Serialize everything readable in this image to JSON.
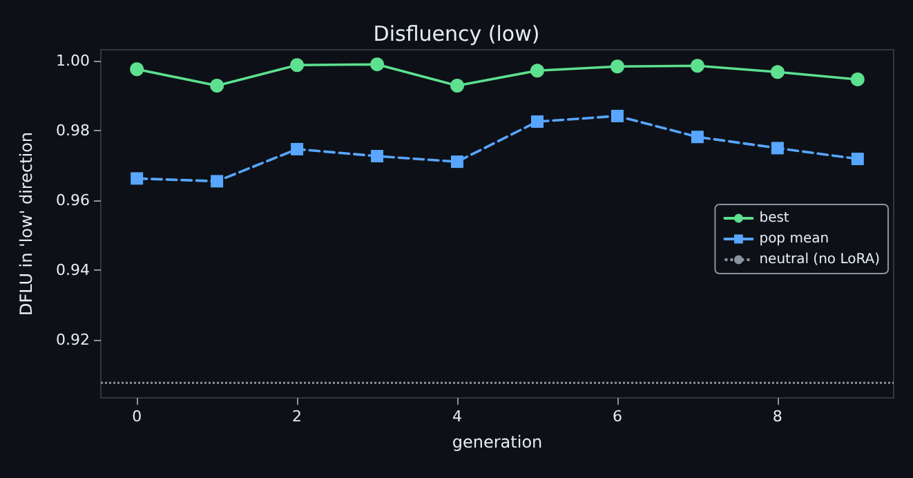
{
  "chart_data": {
    "type": "line",
    "title": "Disfluency (low)",
    "xlabel": "generation",
    "ylabel": "DFLU in 'low' direction",
    "x": [
      0,
      1,
      2,
      3,
      4,
      5,
      6,
      7,
      8,
      9
    ],
    "series": [
      {
        "name": "best",
        "color": "#5de08f",
        "marker": "circle",
        "line_style": "solid",
        "values": [
          0.9976,
          0.9929,
          0.9988,
          0.999,
          0.9929,
          0.9972,
          0.9984,
          0.9986,
          0.9968,
          0.9947
        ]
      },
      {
        "name": "pop mean",
        "color": "#58a6ff",
        "marker": "square",
        "line_style": "dashed",
        "values": [
          0.9663,
          0.9655,
          0.9747,
          0.9727,
          0.9711,
          0.9826,
          0.9842,
          0.9782,
          0.975,
          0.9719
        ]
      }
    ],
    "ref_lines": [
      {
        "axis": "y",
        "value": 0.9077,
        "label": "neutral (no LoRA)",
        "color": "#8b949e",
        "line_style": "dotted"
      }
    ],
    "xlim": [
      -0.45,
      9.45
    ],
    "xticks": [
      0,
      2,
      4,
      6,
      8
    ],
    "ylim": [
      0.9034,
      1.0032
    ],
    "yticks": [
      0.92,
      0.94,
      0.96,
      0.98,
      {
        "value": 1,
        "label": "1.00"
      }
    ],
    "grid": false,
    "legend": "right"
  }
}
